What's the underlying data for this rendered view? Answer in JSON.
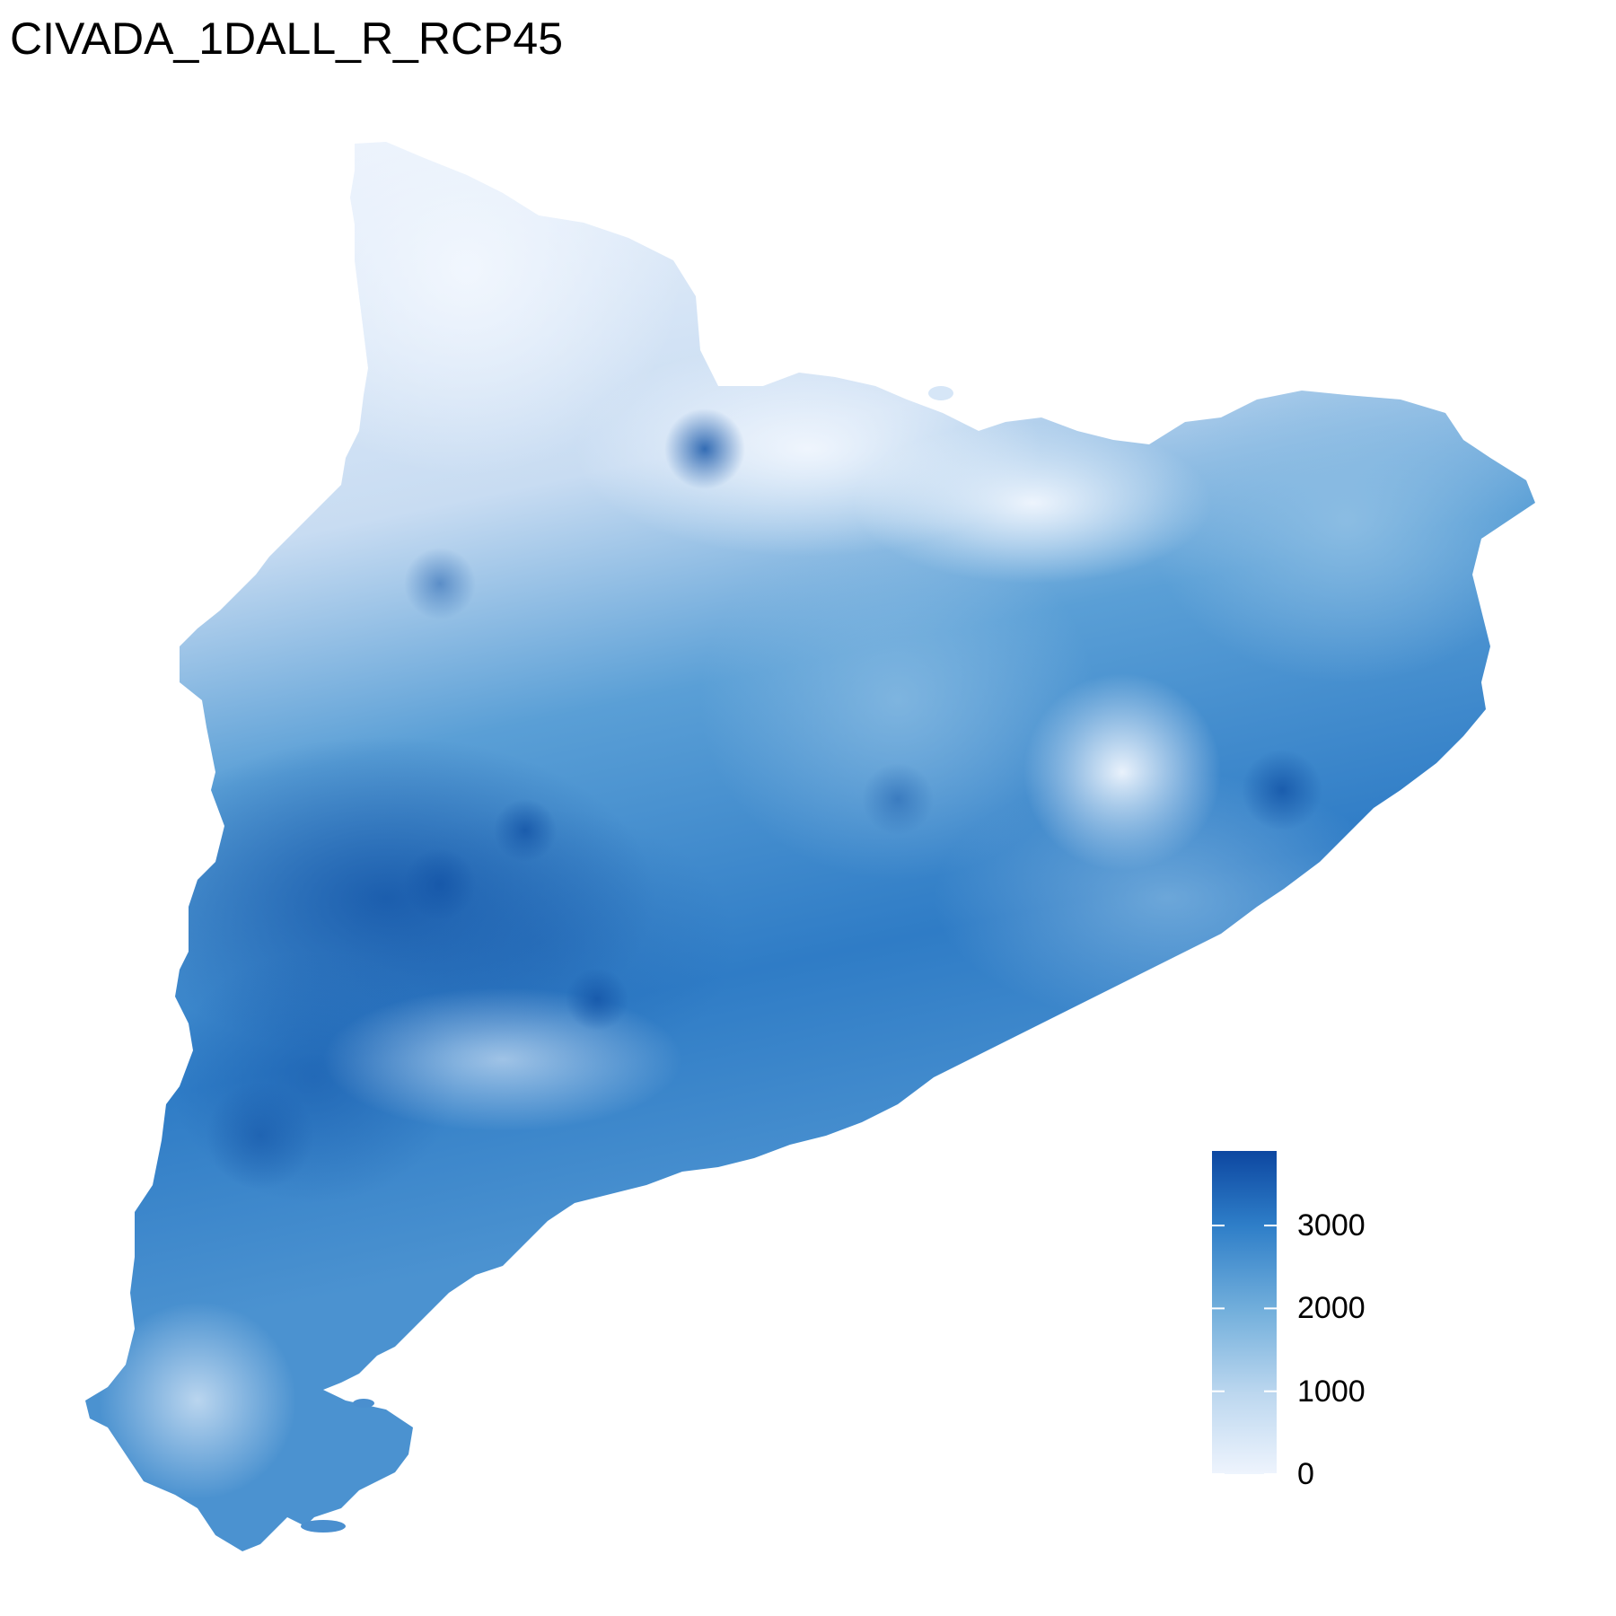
{
  "title": "CIVADA_1DALL_R_RCP45",
  "legend": {
    "min": 0,
    "max": 3900,
    "ticks": [
      {
        "value": 0,
        "label": "0"
      },
      {
        "value": 1000,
        "label": "1000"
      },
      {
        "value": 2000,
        "label": "2000"
      },
      {
        "value": 3000,
        "label": "3000"
      }
    ],
    "color_low": "#eef4fd",
    "color_high": "#0d47a1"
  },
  "map": {
    "region_fill_light": "#eaf2fd",
    "region_fill_mid": "#6baed6",
    "region_fill_dark": "#1c63b5"
  }
}
